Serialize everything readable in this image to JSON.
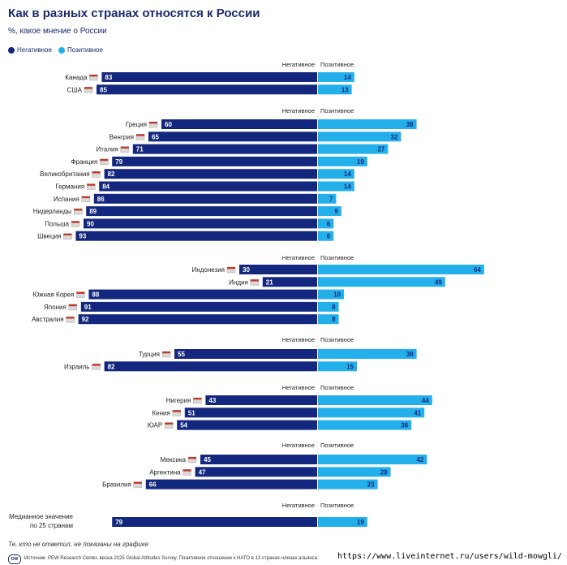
{
  "header": {
    "title": "Как в разных странах относятся к России",
    "subtitle": "%, какое мнение о России"
  },
  "legend": {
    "negative": "Негативное",
    "positive": "Позитивное"
  },
  "colors": {
    "negative": "#13277e",
    "positive": "#23b0ea",
    "title": "#1b2a6b"
  },
  "chart_data": {
    "type": "bar",
    "orientation": "horizontal-diverging",
    "title": "Как в разных странах относятся к России",
    "subtitle": "%, какое мнение о России",
    "column_headers": {
      "negative": "Негативное",
      "positive": "Позитивное"
    },
    "groups": [
      {
        "rows": [
          {
            "country": "Канада",
            "negative": 83,
            "positive": 14
          },
          {
            "country": "США",
            "negative": 85,
            "positive": 13
          }
        ]
      },
      {
        "rows": [
          {
            "country": "Греция",
            "negative": 60,
            "positive": 38
          },
          {
            "country": "Венгрия",
            "negative": 65,
            "positive": 32
          },
          {
            "country": "Италия",
            "negative": 71,
            "positive": 27
          },
          {
            "country": "Франция",
            "negative": 79,
            "positive": 19
          },
          {
            "country": "Великобритания",
            "negative": 82,
            "positive": 14
          },
          {
            "country": "Германия",
            "negative": 84,
            "positive": 14
          },
          {
            "country": "Испания",
            "negative": 86,
            "positive": 7
          },
          {
            "country": "Нидерланды",
            "negative": 89,
            "positive": 9
          },
          {
            "country": "Польша",
            "negative": 90,
            "positive": 6
          },
          {
            "country": "Швеция",
            "negative": 93,
            "positive": 6
          }
        ]
      },
      {
        "rows": [
          {
            "country": "Индонезия",
            "negative": 30,
            "positive": 64
          },
          {
            "country": "Индия",
            "negative": 21,
            "positive": 49
          },
          {
            "country": "Южная Корея",
            "negative": 88,
            "positive": 10
          },
          {
            "country": "Япония",
            "negative": 91,
            "positive": 8
          },
          {
            "country": "Австралия",
            "negative": 92,
            "positive": 8
          }
        ]
      },
      {
        "rows": [
          {
            "country": "Турция",
            "negative": 55,
            "positive": 38
          },
          {
            "country": "Израиль",
            "negative": 82,
            "positive": 15
          }
        ]
      },
      {
        "rows": [
          {
            "country": "Нигерия",
            "negative": 43,
            "positive": 44
          },
          {
            "country": "Кения",
            "negative": 51,
            "positive": 41
          },
          {
            "country": "ЮАР",
            "negative": 54,
            "positive": 36
          }
        ]
      },
      {
        "rows": [
          {
            "country": "Мексика",
            "negative": 45,
            "positive": 42
          },
          {
            "country": "Аргентина",
            "negative": 47,
            "positive": 28
          },
          {
            "country": "Бразилия",
            "negative": 66,
            "positive": 23
          }
        ]
      },
      {
        "rows": [
          {
            "country": "Медианное значение по 25 странам",
            "negative": 79,
            "positive": 19
          }
        ]
      }
    ]
  },
  "footer": {
    "note": "Те, кто не ответил, не показаны на графике",
    "source": "Источник: PEW Research Center, весна 2025 Global Attitudes Survey. Позитивное отношение к НАТО в 13 странах-членах альянса",
    "logo": "DW",
    "url": "https://www.liveinternet.ru/users/wild-mowgli/"
  }
}
